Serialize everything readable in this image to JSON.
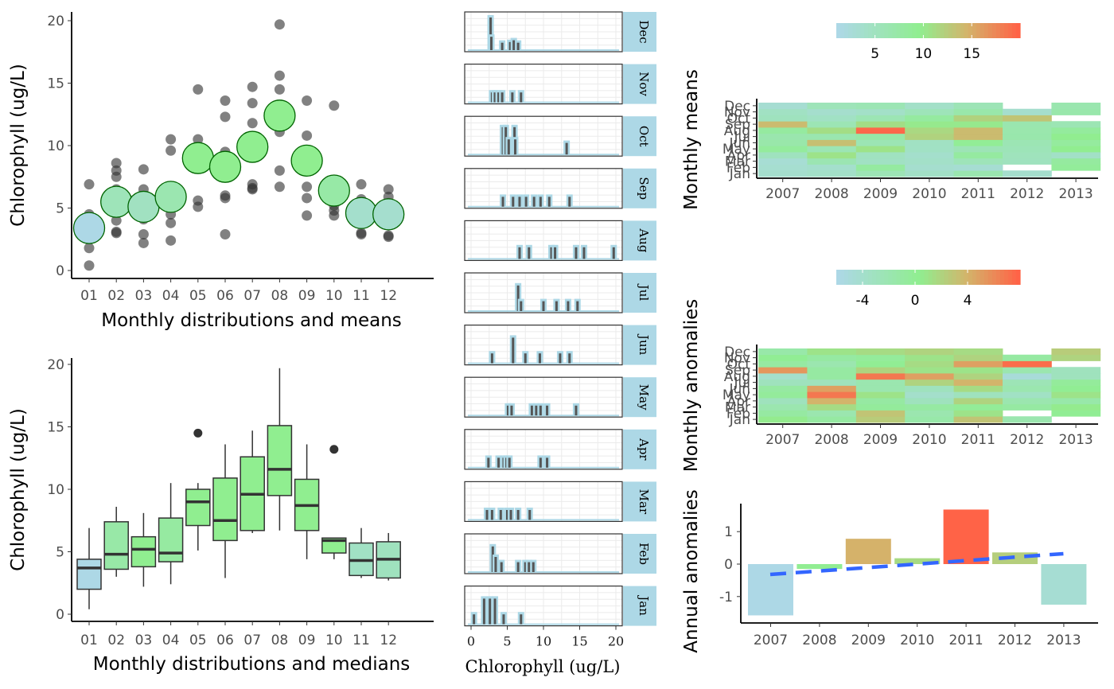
{
  "colors": {
    "point_dark": "#333333",
    "mean_fill_low": "#ADD8E6",
    "mean_fill_high": "#90EE90",
    "mean_stroke": "#006400",
    "box_stroke": "#333333",
    "hist_fill": "#ADD8E6",
    "hist_bar": "#555555",
    "strip_fill": "#ADD8E6",
    "heat_low": "#ADD8E6",
    "heat_mid": "#90EE90",
    "heat_high": "#FF6347",
    "trend": "#3366FF"
  },
  "chart_data": [
    {
      "id": "scatter",
      "type": "scatter",
      "title": "",
      "xlabel": "Monthly distributions and means",
      "ylabel": "Chlorophyll (ug/L)",
      "categories": [
        "01",
        "02",
        "03",
        "04",
        "05",
        "06",
        "07",
        "08",
        "09",
        "10",
        "11",
        "12"
      ],
      "ylim": [
        0,
        20
      ],
      "yticks": [
        0,
        5,
        10,
        15,
        20
      ],
      "observations": [
        [
          0.4,
          1.8,
          2.6,
          3.3,
          4.5,
          6.9
        ],
        [
          3.0,
          3.1,
          4.0,
          5.0,
          6.5,
          7.5,
          8.0,
          8.6
        ],
        [
          2.2,
          2.9,
          4.1,
          5.5,
          6.5,
          8.1
        ],
        [
          2.4,
          3.8,
          4.5,
          5.3,
          9.6,
          10.5
        ],
        [
          5.1,
          5.6,
          8.4,
          9.6,
          10.5,
          14.5
        ],
        [
          2.9,
          5.8,
          6.0,
          7.5,
          9.5,
          12.3,
          13.6
        ],
        [
          6.5,
          6.6,
          6.9,
          10.0,
          11.8,
          13.4,
          14.7
        ],
        [
          6.7,
          8.0,
          11.1,
          14.5,
          15.6,
          19.7
        ],
        [
          4.4,
          5.8,
          6.7,
          8.7,
          10.8,
          13.6
        ],
        [
          4.4,
          4.8,
          5.2,
          6.0,
          6.1,
          13.2
        ],
        [
          2.9,
          3.0,
          4.2,
          5.7,
          6.9
        ],
        [
          2.7,
          2.8,
          4.3,
          5.4,
          5.9,
          6.5
        ]
      ],
      "means": [
        3.4,
        5.5,
        5.1,
        5.9,
        9.0,
        8.3,
        9.9,
        12.4,
        8.8,
        6.4,
        4.6,
        4.5
      ]
    },
    {
      "id": "boxplot",
      "type": "box",
      "title": "",
      "xlabel": "Monthly distributions and medians",
      "ylabel": "Chlorophyll (ug/L)",
      "categories": [
        "01",
        "02",
        "03",
        "04",
        "05",
        "06",
        "07",
        "08",
        "09",
        "10",
        "11",
        "12"
      ],
      "ylim": [
        0,
        20
      ],
      "yticks": [
        0,
        5,
        10,
        15,
        20
      ],
      "boxes": [
        {
          "min": 0.4,
          "q1": 2.0,
          "median": 3.7,
          "q3": 4.4,
          "max": 6.9,
          "outliers": []
        },
        {
          "min": 3.0,
          "q1": 3.6,
          "median": 4.8,
          "q3": 7.4,
          "max": 8.6,
          "outliers": []
        },
        {
          "min": 2.2,
          "q1": 3.8,
          "median": 5.2,
          "q3": 6.2,
          "max": 8.1,
          "outliers": []
        },
        {
          "min": 2.4,
          "q1": 4.2,
          "median": 4.9,
          "q3": 7.7,
          "max": 10.5,
          "outliers": []
        },
        {
          "min": 5.1,
          "q1": 7.1,
          "median": 9.0,
          "q3": 10.0,
          "max": 10.5,
          "outliers": [
            14.5
          ]
        },
        {
          "min": 2.9,
          "q1": 5.9,
          "median": 7.5,
          "q3": 10.9,
          "max": 13.6,
          "outliers": []
        },
        {
          "min": 6.5,
          "q1": 6.7,
          "median": 9.6,
          "q3": 12.6,
          "max": 14.7,
          "outliers": []
        },
        {
          "min": 6.7,
          "q1": 9.5,
          "median": 11.6,
          "q3": 15.1,
          "max": 19.7,
          "outliers": []
        },
        {
          "min": 4.4,
          "q1": 6.7,
          "median": 8.7,
          "q3": 10.8,
          "max": 13.6,
          "outliers": []
        },
        {
          "min": 4.4,
          "q1": 4.9,
          "median": 5.9,
          "q3": 6.1,
          "max": 6.1,
          "outliers": [
            13.2
          ]
        },
        {
          "min": 2.9,
          "q1": 3.1,
          "median": 4.3,
          "q3": 5.7,
          "max": 6.9,
          "outliers": []
        },
        {
          "min": 2.7,
          "q1": 2.9,
          "median": 4.4,
          "q3": 5.8,
          "max": 6.5,
          "outliers": []
        }
      ]
    },
    {
      "id": "histograms",
      "type": "bar",
      "title": "",
      "xlabel": "Chlorophyll (ug/L)",
      "xlim": [
        -0.5,
        20.5
      ],
      "xticks": [
        0,
        5,
        10,
        15,
        20
      ],
      "panels": [
        {
          "label": "Dec",
          "x": [
            2.7,
            2.8,
            4.3,
            5.4,
            5.9,
            6.5
          ],
          "h": [
            1.0,
            0.45,
            0.28,
            0.3,
            0.35,
            0.28
          ]
        },
        {
          "label": "Nov",
          "x": [
            2.9,
            3.3,
            3.8,
            4.3,
            5.7,
            6.9
          ],
          "h": [
            0.35,
            0.35,
            0.35,
            0.35,
            0.35,
            0.35
          ]
        },
        {
          "label": "Oct",
          "x": [
            4.4,
            4.8,
            5.2,
            6.0,
            6.1,
            13.2
          ],
          "h": [
            0.85,
            0.85,
            0.5,
            0.85,
            0.5,
            0.4
          ]
        },
        {
          "label": "Sep",
          "x": [
            4.4,
            5.8,
            6.7,
            7.6,
            8.7,
            9.6,
            10.8,
            13.6
          ],
          "h": [
            0.35,
            0.35,
            0.35,
            0.35,
            0.35,
            0.35,
            0.35,
            0.35
          ]
        },
        {
          "label": "Aug",
          "x": [
            6.7,
            8.0,
            11.1,
            11.6,
            14.5,
            15.6,
            19.7
          ],
          "h": [
            0.4,
            0.4,
            0.4,
            0.4,
            0.4,
            0.4,
            0.4
          ]
        },
        {
          "label": "Jul",
          "x": [
            6.5,
            6.9,
            10.0,
            11.8,
            13.4,
            14.7
          ],
          "h": [
            0.8,
            0.35,
            0.35,
            0.35,
            0.35,
            0.35
          ]
        },
        {
          "label": "Jun",
          "x": [
            2.9,
            5.8,
            7.5,
            9.5,
            12.3,
            13.6
          ],
          "h": [
            0.35,
            0.8,
            0.35,
            0.35,
            0.35,
            0.35
          ]
        },
        {
          "label": "May",
          "x": [
            5.1,
            5.6,
            8.4,
            9.0,
            9.6,
            10.5,
            14.5
          ],
          "h": [
            0.35,
            0.35,
            0.35,
            0.35,
            0.35,
            0.35,
            0.35
          ]
        },
        {
          "label": "Apr",
          "x": [
            2.4,
            3.8,
            4.5,
            4.9,
            5.3,
            9.6,
            10.5
          ],
          "h": [
            0.35,
            0.35,
            0.35,
            0.35,
            0.35,
            0.35,
            0.35
          ]
        },
        {
          "label": "Mar",
          "x": [
            2.2,
            2.9,
            4.1,
            5.0,
            5.5,
            6.5,
            8.1
          ],
          "h": [
            0.35,
            0.35,
            0.35,
            0.35,
            0.35,
            0.35,
            0.35
          ]
        },
        {
          "label": "Feb",
          "x": [
            3.0,
            3.4,
            4.2,
            6.5,
            7.5,
            8.0,
            8.6
          ],
          "h": [
            0.8,
            0.5,
            0.35,
            0.35,
            0.35,
            0.35,
            0.35
          ]
        },
        {
          "label": "Jan",
          "x": [
            0.4,
            1.8,
            2.6,
            3.3,
            4.5,
            6.9
          ],
          "h": [
            0.35,
            0.8,
            0.8,
            0.8,
            0.35,
            0.35
          ]
        }
      ]
    },
    {
      "id": "monthly_means",
      "type": "heatmap",
      "title": "",
      "xlabel": "",
      "ylabel": "Monthly means",
      "x": [
        "2007",
        "2008",
        "2009",
        "2010",
        "2011",
        "2012",
        "2013"
      ],
      "y": [
        "Jan",
        "Feb",
        "Mar",
        "Apr",
        "May",
        "Jun",
        "Jul",
        "Aug",
        "Sep",
        "Oct",
        "Nov",
        "Dec"
      ],
      "legend_ticks": [
        5,
        10,
        15
      ],
      "legend_range": [
        1,
        20
      ],
      "values": [
        [
          3.5,
          4.0,
          5.8,
          4.2,
          6.5,
          3.5,
          null
        ],
        [
          3.2,
          3.6,
          8.0,
          3.4,
          3.0,
          null,
          8.6
        ],
        [
          2.8,
          6.2,
          4.5,
          4.0,
          5.5,
          5.0,
          8.1
        ],
        [
          5.0,
          10.5,
          4.8,
          3.6,
          8.0,
          5.2,
          4.2
        ],
        [
          8.4,
          6.0,
          10.5,
          4.4,
          5.8,
          5.6,
          9.6
        ],
        [
          7.0,
          13.6,
          6.0,
          4.5,
          9.0,
          6.0,
          8.2
        ],
        [
          6.6,
          6.5,
          7.4,
          12.0,
          14.0,
          6.8,
          9.6
        ],
        [
          8.0,
          11.0,
          19.7,
          11.5,
          14.0,
          6.7,
          8.3
        ],
        [
          14.0,
          6.0,
          11.0,
          10.0,
          10.0,
          6.5,
          6.0
        ],
        [
          5.0,
          4.4,
          6.0,
          8.0,
          12.0,
          13.2,
          null
        ],
        [
          4.5,
          3.5,
          4.0,
          5.5,
          7.0,
          3.5,
          6.9
        ],
        [
          3.0,
          5.5,
          6.0,
          4.0,
          5.8,
          null,
          6.5
        ]
      ]
    },
    {
      "id": "monthly_anomalies",
      "type": "heatmap",
      "title": "",
      "xlabel": "",
      "ylabel": "Monthly anomalies",
      "x": [
        "2007",
        "2008",
        "2009",
        "2010",
        "2011",
        "2012",
        "2013"
      ],
      "y": [
        "Jan",
        "Feb",
        "Mar",
        "Apr",
        "May",
        "Jun",
        "Jul",
        "Aug",
        "Sep",
        "Oct",
        "Nov",
        "Dec"
      ],
      "legend_ticks": [
        -4,
        0,
        4
      ],
      "legend_range": [
        -6,
        8
      ],
      "values": [
        [
          0.5,
          -1.0,
          2.5,
          -1.5,
          3.0,
          -2.0,
          null
        ],
        [
          -1.0,
          -2.0,
          3.0,
          -2.0,
          1.0,
          null,
          0.0
        ],
        [
          -2.0,
          1.5,
          -0.5,
          -1.0,
          -0.3,
          -1.0,
          0.5
        ],
        [
          -3.0,
          4.0,
          -1.0,
          -3.0,
          2.0,
          -2.0,
          -1.5
        ],
        [
          -0.5,
          7.0,
          1.0,
          -4.0,
          -3.0,
          -3.5,
          1.0
        ],
        [
          -1.0,
          5.0,
          -2.0,
          -3.0,
          1.5,
          -2.0,
          0.0
        ],
        [
          -3.0,
          -3.0,
          -2.0,
          2.0,
          4.0,
          -2.5,
          -0.5
        ],
        [
          -4.0,
          -1.0,
          7.0,
          5.0,
          2.0,
          -5.0,
          -3.0
        ],
        [
          5.5,
          -1.0,
          2.0,
          1.0,
          1.0,
          -2.0,
          -3.0
        ],
        [
          -1.0,
          -2.0,
          0.0,
          1.5,
          5.0,
          7.5,
          null
        ],
        [
          0.0,
          -1.0,
          -0.5,
          1.0,
          2.0,
          -1.0,
          2.0
        ],
        [
          -1.5,
          1.0,
          1.5,
          2.0,
          1.5,
          null,
          2.5
        ]
      ]
    },
    {
      "id": "annual_anomalies",
      "type": "bar",
      "title": "",
      "xlabel": "",
      "ylabel": "Annual anomalies",
      "categories": [
        "2007",
        "2008",
        "2009",
        "2010",
        "2011",
        "2012",
        "2013"
      ],
      "values": [
        -1.58,
        -0.15,
        0.78,
        0.18,
        1.68,
        0.36,
        -1.25
      ],
      "ylim": [
        -1.9,
        1.85
      ],
      "yticks": [
        -1,
        0,
        1
      ],
      "trend": [
        -0.32,
        0.32
      ]
    }
  ]
}
